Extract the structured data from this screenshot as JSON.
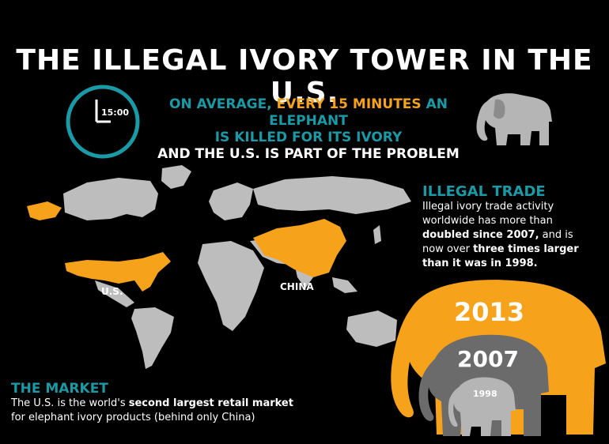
{
  "title": "THE ILLEGAL IVORY TOWER IN THE U.S.",
  "clock": {
    "time": "15:00"
  },
  "average": {
    "part1": "ON AVERAGE, ",
    "part2": "EVERY 15 MINUTES",
    "part3": " AN ELEPHANT",
    "line2": "IS KILLED FOR ITS IVORY",
    "line3": "AND THE U.S. IS PART OF THE PROBLEM"
  },
  "map": {
    "us_label": "U.S.",
    "china_label": "CHINA"
  },
  "illegal_trade": {
    "heading": "ILLEGAL TRADE",
    "t1": "Illegal ivory trade activity worldwide has more than ",
    "b1": "doubled since 2007,",
    "t2": " and is now over ",
    "b2": "three times larger than it was in 1998."
  },
  "elephants": {
    "y2013": "2013",
    "y2007": "2007",
    "y1998": "1998"
  },
  "market": {
    "heading": "THE MARKET",
    "t1": "The U.S. is the world's ",
    "b1": "second largest retail market",
    "t2": "for elephant ivory products (behind only China)"
  },
  "colors": {
    "accent_teal": "#1a9aa6",
    "accent_orange": "#f7a21b",
    "gray": "#8c8c8c",
    "dark_gray": "#6b6b6b",
    "light_gray": "#b5b5b5"
  }
}
